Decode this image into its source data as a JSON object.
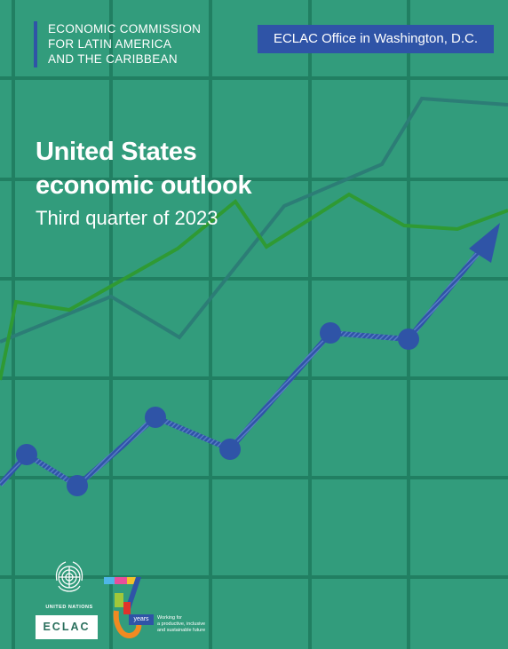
{
  "header": {
    "org_lines": [
      "ECONOMIC COMMISSION",
      "FOR LATIN AMERICA",
      "AND THE CARIBBEAN"
    ],
    "office": "ECLAC Office in Washington, D.C."
  },
  "title": {
    "line1": "United States",
    "line2": "economic outlook",
    "subtitle": "Third quarter of 2023"
  },
  "footer": {
    "un_label": "UNITED NATIONS",
    "eclac_label": "ECLAC",
    "years_label": "years",
    "anniversary_lines": [
      "Working for",
      "a productive, inclusive",
      "and sustainable future"
    ]
  },
  "colors": {
    "background": "#329c7c",
    "grid": "#217f62",
    "accent_blue": "#2f54a7",
    "green_line": "#2f9a33",
    "teal_line": "#2c7d76"
  }
}
